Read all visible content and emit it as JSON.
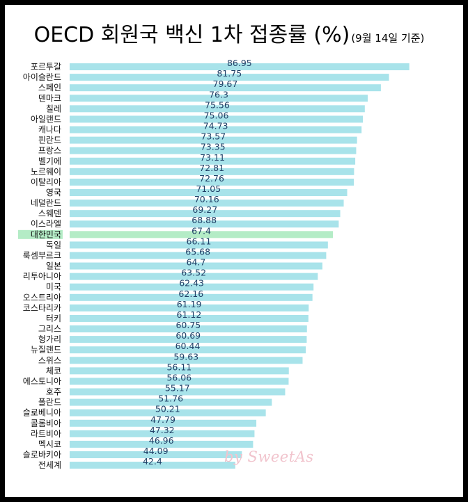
{
  "title": "OECD 회원국 백신 1차 접종률 (%)",
  "subtitle": "(9월 14일 기준)",
  "watermark": "by SweetAs",
  "colors": {
    "bar": "#a8e3ea",
    "highlight_bar": "#b4ecc6",
    "value_text": "#1f3f66"
  },
  "chart_data": {
    "type": "bar",
    "orientation": "horizontal",
    "title": "OECD 회원국 백신 1차 접종률 (%)",
    "subtitle": "(9월 14일 기준)",
    "xlabel": "",
    "ylabel": "",
    "xlim": [
      0,
      100
    ],
    "grid": false,
    "highlight": "대한민국",
    "categories": [
      "포르투갈",
      "아이슬란드",
      "스페인",
      "덴마크",
      "칠레",
      "아일랜드",
      "캐나다",
      "핀란드",
      "프랑스",
      "벨기에",
      "노르웨이",
      "이탈리아",
      "영국",
      "네덜란드",
      "스웨덴",
      "이스라엘",
      "대한민국",
      "독일",
      "룩셈부르크",
      "일본",
      "리투아니아",
      "미국",
      "오스트리아",
      "코스타리카",
      "터키",
      "그리스",
      "헝가리",
      "뉴질랜드",
      "스위스",
      "체코",
      "에스토니아",
      "호주",
      "폴란드",
      "슬로베니아",
      "콜롬비아",
      "라트비아",
      "멕시코",
      "슬로바키아",
      "전세계"
    ],
    "values": [
      86.95,
      81.75,
      79.67,
      76.3,
      75.56,
      75.06,
      74.73,
      73.57,
      73.35,
      73.11,
      72.81,
      72.76,
      71.05,
      70.16,
      69.27,
      68.88,
      67.4,
      66.11,
      65.68,
      64.7,
      63.52,
      62.43,
      62.16,
      61.19,
      61.12,
      60.75,
      60.69,
      60.44,
      59.63,
      56.11,
      56.06,
      55.17,
      51.76,
      50.21,
      47.79,
      47.32,
      46.96,
      44.09,
      42.4
    ]
  }
}
